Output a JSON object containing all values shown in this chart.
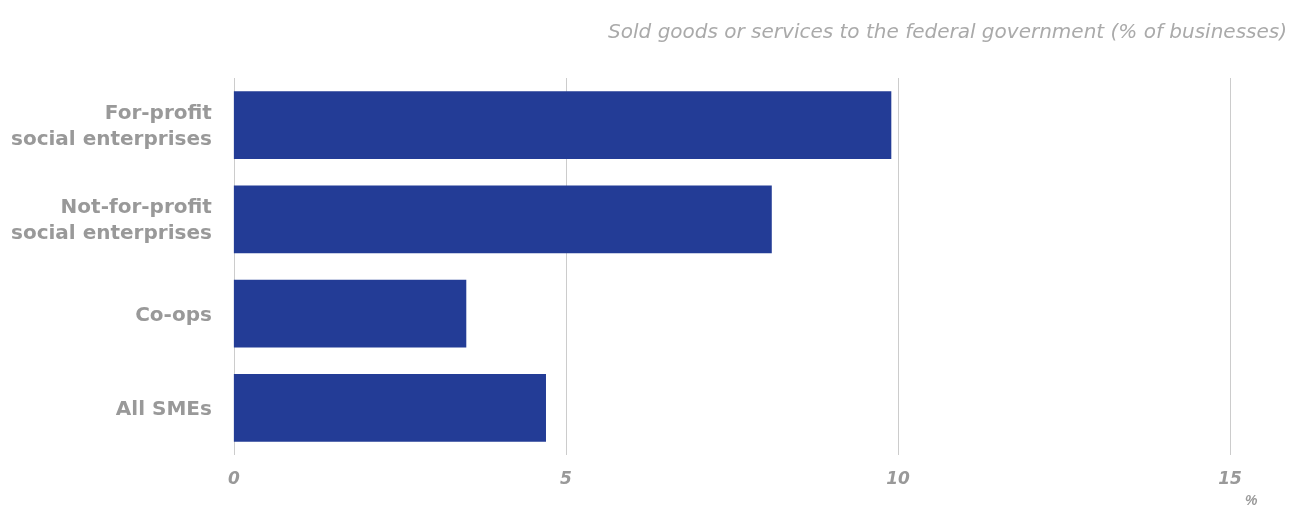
{
  "chart_data": {
    "type": "bar",
    "orientation": "horizontal",
    "title": "Sold goods or services to the federal government (% of businesses)",
    "xlabel": "%",
    "categories": [
      "For-profit\nsocial enterprises",
      "Not-for-profit\nsocial enterprises",
      "Co-ops",
      "All SMEs"
    ],
    "values": [
      9.9,
      8.1,
      3.5,
      4.7
    ],
    "color": "#233c96",
    "xlim": [
      0,
      15
    ],
    "xticks": [
      0,
      5,
      10,
      15
    ],
    "grid": "x"
  }
}
